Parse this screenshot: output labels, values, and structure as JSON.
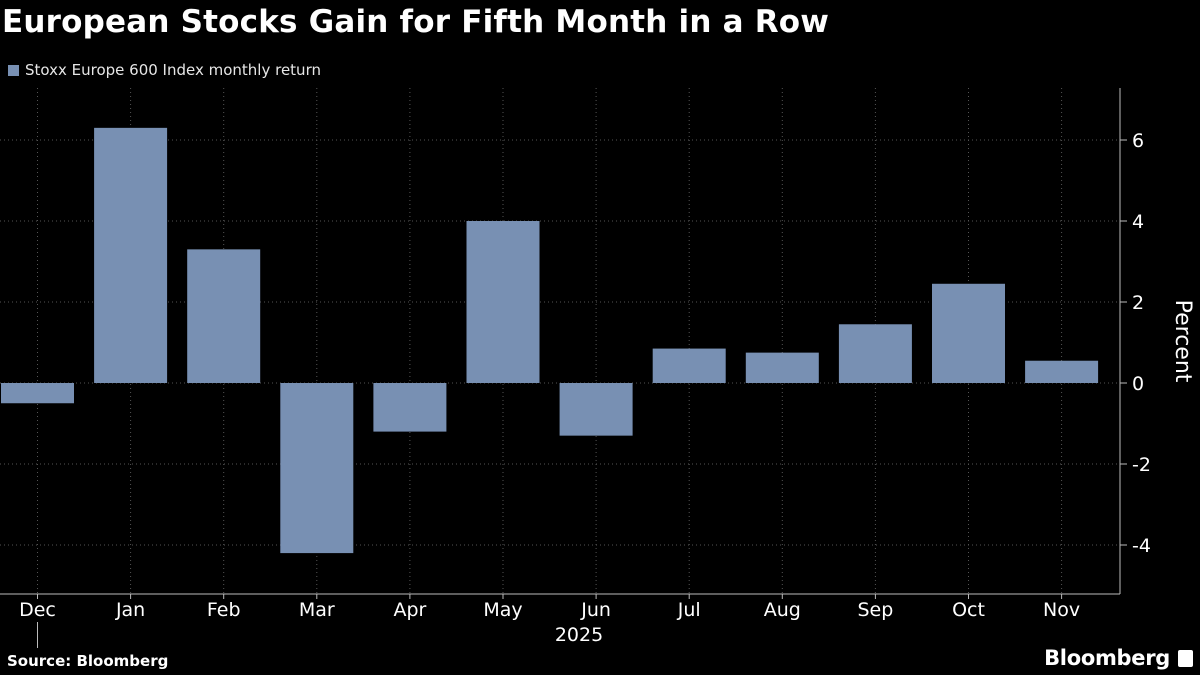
{
  "title": "European Stocks Gain for Fifth Month in a Row",
  "source": "Source: Bloomberg",
  "brand": "Bloomberg",
  "colors": {
    "background": "#000000",
    "bar": "#7890b3",
    "grid": "#555555",
    "text": "#ffffff"
  },
  "chart_data": {
    "type": "bar",
    "categories": [
      "Dec",
      "Jan",
      "Feb",
      "Mar",
      "Apr",
      "May",
      "Jun",
      "Jul",
      "Aug",
      "Sep",
      "Oct",
      "Nov"
    ],
    "year_label": "2025",
    "series": [
      {
        "name": "Stoxx Europe 600 Index monthly return",
        "values": [
          -0.5,
          6.3,
          3.3,
          -4.2,
          -1.2,
          4.0,
          -1.3,
          0.85,
          0.75,
          1.45,
          2.45,
          0.55
        ]
      }
    ],
    "xlabel": "",
    "ylabel": "Percent",
    "ylim": [
      -5.2,
      7.3
    ],
    "yticks": [
      -4,
      -2,
      0,
      2,
      4,
      6
    ],
    "ytick_labels": [
      "-4",
      "-2",
      "0",
      "2",
      "4",
      "6"
    ],
    "grid": "vertical dotted at category centers",
    "legend_placement": "top-left",
    "y_axis_side": "right"
  }
}
